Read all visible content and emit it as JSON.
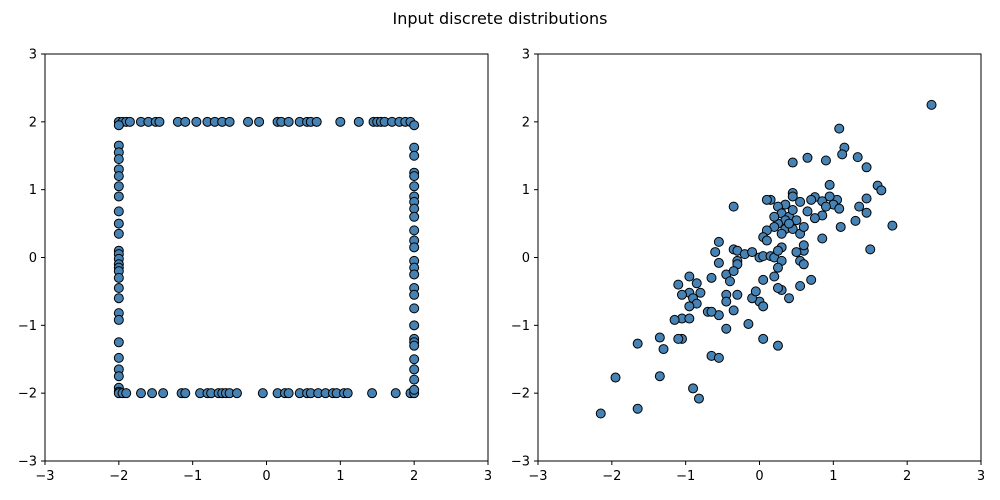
{
  "figure": {
    "suptitle": "Input discrete distributions"
  },
  "chart_data": [
    {
      "type": "scatter",
      "title": "",
      "xlabel": "",
      "ylabel": "",
      "xlim": [
        -3,
        3
      ],
      "ylim": [
        -3,
        3
      ],
      "xticks": [
        -3,
        -2,
        -1,
        0,
        1,
        2,
        3
      ],
      "yticks": [
        -3,
        -2,
        -1,
        0,
        1,
        2,
        3
      ],
      "tick_labels": [
        "−3",
        "−2",
        "−1",
        "0",
        "1",
        "2",
        "3"
      ],
      "grid": false,
      "marker_color": "#4682b4",
      "marker_edge_color": "#000000",
      "points": [
        [
          -2.0,
          2.0
        ],
        [
          -1.95,
          2.0
        ],
        [
          -1.9,
          2.0
        ],
        [
          -1.85,
          2.0
        ],
        [
          -1.7,
          2.0
        ],
        [
          -1.6,
          2.0
        ],
        [
          -1.5,
          2.0
        ],
        [
          -1.45,
          2.0
        ],
        [
          -1.2,
          2.0
        ],
        [
          -1.1,
          2.0
        ],
        [
          -0.95,
          2.0
        ],
        [
          -0.8,
          2.0
        ],
        [
          -0.7,
          2.0
        ],
        [
          -0.6,
          2.0
        ],
        [
          -0.5,
          2.0
        ],
        [
          -0.25,
          2.0
        ],
        [
          -0.1,
          2.0
        ],
        [
          0.15,
          2.0
        ],
        [
          0.2,
          2.0
        ],
        [
          0.3,
          2.0
        ],
        [
          0.45,
          2.0
        ],
        [
          0.55,
          2.0
        ],
        [
          0.6,
          2.0
        ],
        [
          0.68,
          2.0
        ],
        [
          1.0,
          2.0
        ],
        [
          1.25,
          2.0
        ],
        [
          1.45,
          2.0
        ],
        [
          1.5,
          2.0
        ],
        [
          1.55,
          2.0
        ],
        [
          1.6,
          2.0
        ],
        [
          1.7,
          2.0
        ],
        [
          1.8,
          2.0
        ],
        [
          1.88,
          2.0
        ],
        [
          1.95,
          2.0
        ],
        [
          -2.0,
          1.95
        ],
        [
          -2.0,
          1.65
        ],
        [
          -2.0,
          1.55
        ],
        [
          -2.0,
          1.45
        ],
        [
          -2.0,
          1.3
        ],
        [
          -2.0,
          1.2
        ],
        [
          -2.0,
          1.05
        ],
        [
          -2.0,
          0.9
        ],
        [
          -2.0,
          0.68
        ],
        [
          -2.0,
          0.5
        ],
        [
          -2.0,
          0.35
        ],
        [
          -2.0,
          0.1
        ],
        [
          -2.0,
          0.05
        ],
        [
          -2.0,
          -0.02
        ],
        [
          -2.0,
          -0.1
        ],
        [
          -2.0,
          -0.15
        ],
        [
          -2.0,
          -0.2
        ],
        [
          -2.0,
          -0.3
        ],
        [
          -2.0,
          -0.45
        ],
        [
          -2.0,
          -0.6
        ],
        [
          -2.0,
          -0.82
        ],
        [
          -2.0,
          -0.92
        ],
        [
          -2.0,
          -1.25
        ],
        [
          -2.0,
          -1.48
        ],
        [
          -2.0,
          -1.65
        ],
        [
          -2.0,
          -1.75
        ],
        [
          -2.0,
          -1.92
        ],
        [
          -2.0,
          -1.98
        ],
        [
          -2.0,
          -2.0
        ],
        [
          -1.95,
          -2.0
        ],
        [
          -1.9,
          -2.0
        ],
        [
          -1.7,
          -2.0
        ],
        [
          -1.55,
          -2.0
        ],
        [
          -1.4,
          -2.0
        ],
        [
          -1.15,
          -2.0
        ],
        [
          -1.1,
          -2.0
        ],
        [
          -0.9,
          -2.0
        ],
        [
          -0.8,
          -2.0
        ],
        [
          -0.75,
          -2.0
        ],
        [
          -0.65,
          -2.0
        ],
        [
          -0.6,
          -2.0
        ],
        [
          -0.55,
          -2.0
        ],
        [
          -0.5,
          -2.0
        ],
        [
          -0.4,
          -2.0
        ],
        [
          -0.05,
          -2.0
        ],
        [
          0.15,
          -2.0
        ],
        [
          0.25,
          -2.0
        ],
        [
          0.3,
          -2.0
        ],
        [
          0.45,
          -2.0
        ],
        [
          0.55,
          -2.0
        ],
        [
          0.6,
          -2.0
        ],
        [
          0.7,
          -2.0
        ],
        [
          0.8,
          -2.0
        ],
        [
          0.9,
          -2.0
        ],
        [
          0.95,
          -2.0
        ],
        [
          1.05,
          -2.0
        ],
        [
          1.1,
          -2.0
        ],
        [
          1.43,
          -2.0
        ],
        [
          1.75,
          -2.0
        ],
        [
          1.95,
          -2.0
        ],
        [
          2.0,
          -2.0
        ],
        [
          2.0,
          1.95
        ],
        [
          2.0,
          1.62
        ],
        [
          2.0,
          1.5
        ],
        [
          2.0,
          1.25
        ],
        [
          2.0,
          1.2
        ],
        [
          2.0,
          1.05
        ],
        [
          2.0,
          0.9
        ],
        [
          2.0,
          0.82
        ],
        [
          2.0,
          0.72
        ],
        [
          2.0,
          0.6
        ],
        [
          2.0,
          0.4
        ],
        [
          2.0,
          0.25
        ],
        [
          2.0,
          0.15
        ],
        [
          2.0,
          -0.05
        ],
        [
          2.0,
          -0.15
        ],
        [
          2.0,
          -0.25
        ],
        [
          2.0,
          -0.45
        ],
        [
          2.0,
          -0.55
        ],
        [
          2.0,
          -0.75
        ],
        [
          2.0,
          -1.0
        ],
        [
          2.0,
          -1.2
        ],
        [
          2.0,
          -1.25
        ],
        [
          2.0,
          -1.3
        ],
        [
          2.0,
          -1.5
        ],
        [
          2.0,
          -1.65
        ],
        [
          2.0,
          -1.8
        ],
        [
          2.0,
          -1.95
        ]
      ]
    },
    {
      "type": "scatter",
      "title": "",
      "xlabel": "",
      "ylabel": "",
      "xlim": [
        -3,
        3
      ],
      "ylim": [
        -3,
        3
      ],
      "xticks": [
        -3,
        -2,
        -1,
        0,
        1,
        2,
        3
      ],
      "yticks": [
        -3,
        -2,
        -1,
        0,
        1,
        2,
        3
      ],
      "tick_labels": [
        "−3",
        "−2",
        "−1",
        "0",
        "1",
        "2",
        "3"
      ],
      "grid": false,
      "marker_color": "#4682b4",
      "marker_edge_color": "#000000",
      "points": [
        [
          2.33,
          2.25
        ],
        [
          1.08,
          1.9
        ],
        [
          1.15,
          1.62
        ],
        [
          1.12,
          1.52
        ],
        [
          1.33,
          1.48
        ],
        [
          0.65,
          1.47
        ],
        [
          0.45,
          1.4
        ],
        [
          0.9,
          1.43
        ],
        [
          1.45,
          1.33
        ],
        [
          1.6,
          1.06
        ],
        [
          1.65,
          0.99
        ],
        [
          0.95,
          1.07
        ],
        [
          0.45,
          0.95
        ],
        [
          0.45,
          0.9
        ],
        [
          0.75,
          0.89
        ],
        [
          0.85,
          0.83
        ],
        [
          1.05,
          0.85
        ],
        [
          1.45,
          0.87
        ],
        [
          1.35,
          0.75
        ],
        [
          1.45,
          0.66
        ],
        [
          0.95,
          0.9
        ],
        [
          1.0,
          0.78
        ],
        [
          1.08,
          0.72
        ],
        [
          1.8,
          0.47
        ],
        [
          1.5,
          0.12
        ],
        [
          1.3,
          0.54
        ],
        [
          1.1,
          0.45
        ],
        [
          0.85,
          0.62
        ],
        [
          0.75,
          0.58
        ],
        [
          0.65,
          0.68
        ],
        [
          0.55,
          0.82
        ],
        [
          0.35,
          0.78
        ],
        [
          0.25,
          0.75
        ],
        [
          0.15,
          0.85
        ],
        [
          0.3,
          0.65
        ],
        [
          0.4,
          0.6
        ],
        [
          0.5,
          0.55
        ],
        [
          0.35,
          0.55
        ],
        [
          0.25,
          0.5
        ],
        [
          0.2,
          0.45
        ],
        [
          0.1,
          0.4
        ],
        [
          0.35,
          0.42
        ],
        [
          0.45,
          0.42
        ],
        [
          0.55,
          0.35
        ],
        [
          0.3,
          0.35
        ],
        [
          0.6,
          0.45
        ],
        [
          0.05,
          0.3
        ],
        [
          0.1,
          0.25
        ],
        [
          -0.35,
          0.75
        ],
        [
          -0.55,
          0.23
        ],
        [
          -0.35,
          0.12
        ],
        [
          -0.3,
          0.1
        ],
        [
          -0.2,
          0.05
        ],
        [
          -0.1,
          0.08
        ],
        [
          0.0,
          0.0
        ],
        [
          0.05,
          0.02
        ],
        [
          0.15,
          0.02
        ],
        [
          0.2,
          0.0
        ],
        [
          0.3,
          0.15
        ],
        [
          0.25,
          0.1
        ],
        [
          0.3,
          -0.05
        ],
        [
          0.25,
          -0.15
        ],
        [
          0.2,
          -0.28
        ],
        [
          0.3,
          -0.48
        ],
        [
          0.25,
          -0.45
        ],
        [
          0.4,
          -0.6
        ],
        [
          0.55,
          -0.42
        ],
        [
          0.7,
          -0.33
        ],
        [
          0.6,
          0.1
        ],
        [
          0.6,
          0.18
        ],
        [
          0.55,
          -0.05
        ],
        [
          0.6,
          -0.1
        ],
        [
          0.5,
          0.08
        ],
        [
          -0.6,
          0.08
        ],
        [
          -0.55,
          -0.08
        ],
        [
          -0.65,
          -0.3
        ],
        [
          -0.85,
          -0.38
        ],
        [
          -0.95,
          -0.28
        ],
        [
          -1.1,
          -0.4
        ],
        [
          -0.95,
          -0.52
        ],
        [
          -1.05,
          -0.55
        ],
        [
          -0.9,
          -0.6
        ],
        [
          -0.85,
          -0.68
        ],
        [
          -0.95,
          -0.72
        ],
        [
          -1.05,
          -0.9
        ],
        [
          -0.95,
          -0.9
        ],
        [
          -1.15,
          -0.92
        ],
        [
          -1.05,
          -1.2
        ],
        [
          -1.1,
          -1.2
        ],
        [
          -1.35,
          -1.18
        ],
        [
          -1.3,
          -1.35
        ],
        [
          -1.65,
          -1.27
        ],
        [
          -0.7,
          -0.8
        ],
        [
          -0.55,
          -0.85
        ],
        [
          -0.45,
          -0.55
        ],
        [
          -0.45,
          -0.25
        ],
        [
          -0.4,
          -0.35
        ],
        [
          -0.3,
          -0.05
        ],
        [
          -0.3,
          -0.1
        ],
        [
          -0.35,
          -0.2
        ],
        [
          -0.3,
          -0.55
        ],
        [
          -0.35,
          -0.78
        ],
        [
          -0.15,
          -0.98
        ],
        [
          -0.45,
          -1.05
        ],
        [
          0.0,
          -0.65
        ],
        [
          -0.1,
          -0.6
        ],
        [
          -0.05,
          -0.5
        ],
        [
          0.05,
          -0.72
        ],
        [
          0.05,
          -0.33
        ],
        [
          0.05,
          -1.2
        ],
        [
          0.25,
          -1.3
        ],
        [
          -0.65,
          -1.45
        ],
        [
          -0.55,
          -1.48
        ],
        [
          -0.8,
          -0.52
        ],
        [
          -0.65,
          -0.8
        ],
        [
          -1.95,
          -1.77
        ],
        [
          -1.35,
          -1.75
        ],
        [
          -0.9,
          -1.93
        ],
        [
          -0.82,
          -2.08
        ],
        [
          -2.15,
          -2.3
        ],
        [
          -1.65,
          -2.23
        ],
        [
          -0.45,
          -0.65
        ],
        [
          0.85,
          0.28
        ],
        [
          0.9,
          0.75
        ],
        [
          0.7,
          0.85
        ],
        [
          0.45,
          0.7
        ],
        [
          0.4,
          0.5
        ],
        [
          0.2,
          0.6
        ],
        [
          0.1,
          0.85
        ]
      ]
    }
  ]
}
